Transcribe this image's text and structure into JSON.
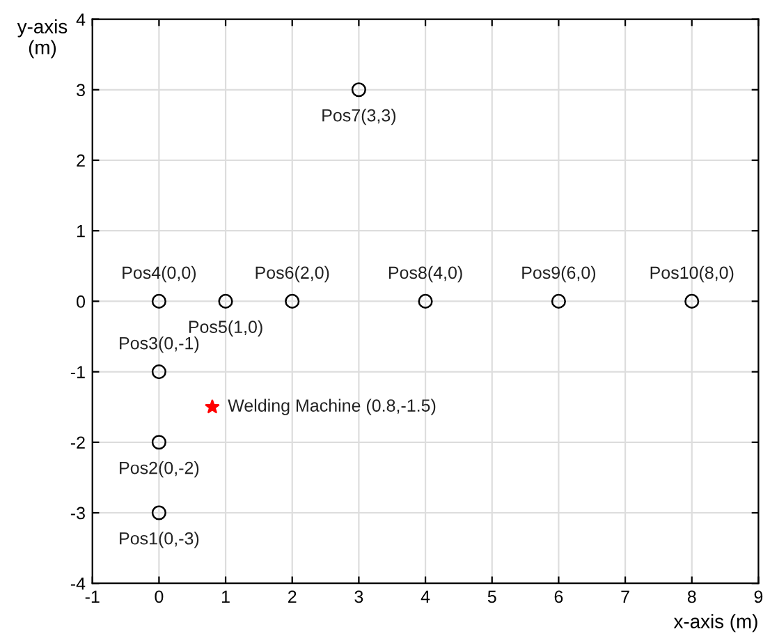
{
  "chart_data": {
    "type": "scatter",
    "xlabel": "x-axis (m)",
    "ylabel": "y-axis\n(m)",
    "series": [
      {
        "color": "#000000",
        "marker": "circle",
        "x": [
          0,
          0,
          0,
          0,
          1,
          2,
          3,
          4,
          6,
          8
        ],
        "values": [
          -3,
          -2,
          -1,
          0,
          0,
          0,
          3,
          0,
          0,
          0
        ]
      },
      {
        "color": "#ff0000",
        "marker": "star",
        "x": [
          0.8
        ],
        "values": [
          -1.5
        ]
      }
    ],
    "annotations": [
      {
        "text": "Pos1(0,-3)",
        "x": 0,
        "y": -3
      },
      {
        "text": "Pos2(0,-2)",
        "x": 0,
        "y": -2
      },
      {
        "text": "Pos3(0,-1)",
        "x": 0,
        "y": -1
      },
      {
        "text": "Pos4(0,0)",
        "x": 0,
        "y": 0
      },
      {
        "text": "Pos5(1,0)",
        "x": 1,
        "y": 0
      },
      {
        "text": "Pos6(2,0)",
        "x": 2,
        "y": 0
      },
      {
        "text": "Pos7(3,3)",
        "x": 3,
        "y": 3
      },
      {
        "text": "Pos8(4,0)",
        "x": 4,
        "y": 0
      },
      {
        "text": "Pos9(6,0)",
        "x": 6,
        "y": 0
      },
      {
        "text": "Pos10(8,0)",
        "x": 8,
        "y": 0
      },
      {
        "text": "Welding Machine (0.8,-1.5)",
        "x": 0.8,
        "y": -1.5
      }
    ],
    "xlim": [
      -1,
      9
    ],
    "xticks": [
      -1,
      0,
      1,
      2,
      3,
      4,
      5,
      6,
      7,
      8,
      9
    ],
    "ylim": [
      -4,
      4
    ],
    "yticks": [
      -4,
      -3,
      -2,
      -1,
      0,
      1,
      2,
      3,
      4
    ],
    "grid": true
  }
}
